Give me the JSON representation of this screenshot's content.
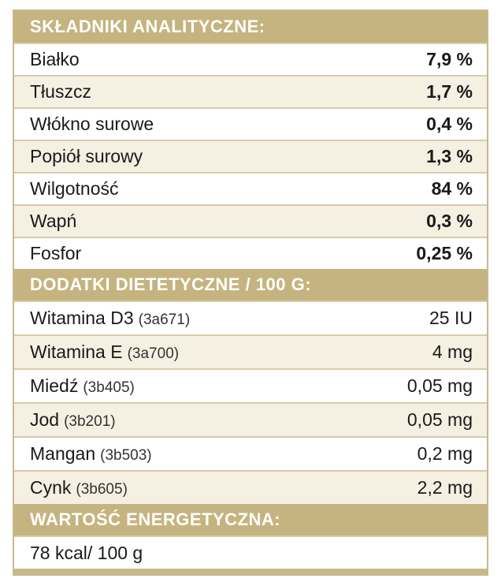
{
  "analytical": {
    "title": "SKŁADNIKI ANALITYCZNE:",
    "rows": [
      {
        "name": "Białko",
        "value": "7,9 %"
      },
      {
        "name": "Tłuszcz",
        "value": "1,7 %"
      },
      {
        "name": "Włókno surowe",
        "value": "0,4 %"
      },
      {
        "name": "Popiół surowy",
        "value": "1,3 %"
      },
      {
        "name": "Wilgotność",
        "value": "84 %"
      },
      {
        "name": "Wapń",
        "value": "0,3 %"
      },
      {
        "name": "Fosfor",
        "value": "0,25 %"
      }
    ]
  },
  "additives": {
    "title": "DODATKI DIETETYCZNE / 100 G:",
    "rows": [
      {
        "name": "Witamina D3",
        "code": "(3a671)",
        "value": "25 IU"
      },
      {
        "name": "Witamina E",
        "code": "(3a700)",
        "value": "4 mg"
      },
      {
        "name": "Miedź",
        "code": "(3b405)",
        "value": "0,05 mg"
      },
      {
        "name": "Jod",
        "code": "(3b201)",
        "value": "0,05 mg"
      },
      {
        "name": "Mangan",
        "code": "(3b503)",
        "value": "0,2 mg"
      },
      {
        "name": "Cynk",
        "code": "(3b605)",
        "value": "2,2 mg"
      }
    ]
  },
  "energy": {
    "title": "WARTOŚĆ ENERGETYCZNA:",
    "value": "78 kcal/ 100 g"
  }
}
